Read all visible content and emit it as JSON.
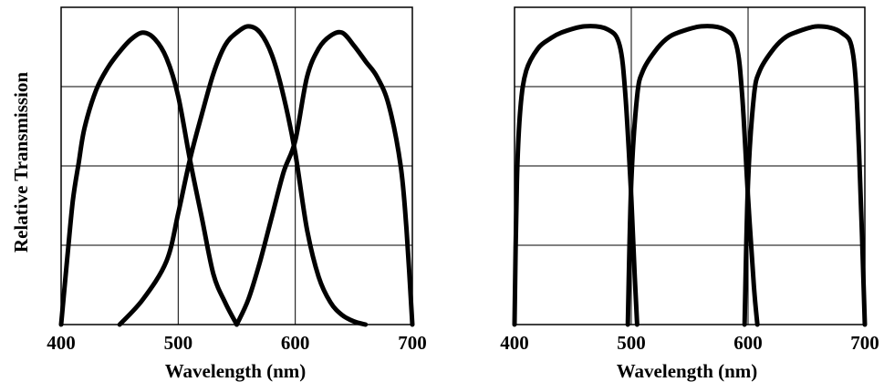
{
  "colors": {
    "background": "#ffffff",
    "ink": "#000000"
  },
  "chart_data": [
    {
      "type": "line",
      "title": "",
      "xlabel": "Wavelength (nm)",
      "ylabel": "Relative Transmission",
      "xlim": [
        400,
        700
      ],
      "ylim": [
        0,
        1
      ],
      "x_ticks": [
        "400",
        "500",
        "600",
        "700"
      ],
      "grid": true,
      "y_tick_labels_shown": false,
      "series": [
        {
          "x": [
            400,
            405,
            410,
            415,
            420,
            430,
            440,
            450,
            460,
            470,
            480,
            490,
            500,
            510,
            520,
            530,
            540,
            550
          ],
          "y": [
            0,
            0.2,
            0.39,
            0.51,
            0.62,
            0.74,
            0.81,
            0.86,
            0.9,
            0.92,
            0.9,
            0.84,
            0.72,
            0.52,
            0.34,
            0.16,
            0.07,
            0
          ]
        },
        {
          "x": [
            450,
            470,
            490,
            500,
            510,
            520,
            530,
            540,
            550,
            560,
            570,
            580,
            590,
            600,
            610,
            620,
            630,
            640,
            650,
            660
          ],
          "y": [
            0,
            0.08,
            0.2,
            0.35,
            0.52,
            0.66,
            0.79,
            0.88,
            0.92,
            0.94,
            0.92,
            0.85,
            0.72,
            0.54,
            0.3,
            0.15,
            0.07,
            0.03,
            0.01,
            0
          ]
        },
        {
          "x": [
            550,
            560,
            570,
            580,
            590,
            600,
            610,
            620,
            630,
            640,
            650,
            660,
            670,
            680,
            690,
            695,
            700
          ],
          "y": [
            0,
            0.08,
            0.2,
            0.34,
            0.48,
            0.58,
            0.78,
            0.87,
            0.91,
            0.92,
            0.88,
            0.83,
            0.78,
            0.69,
            0.5,
            0.3,
            0
          ]
        }
      ]
    },
    {
      "type": "line",
      "title": "",
      "xlabel": "Wavelength (nm)",
      "ylabel": "",
      "xlim": [
        400,
        700
      ],
      "ylim": [
        0,
        1
      ],
      "x_ticks": [
        "400",
        "500",
        "600",
        "700"
      ],
      "grid": true,
      "y_tick_labels_shown": false,
      "series": [
        {
          "x": [
            400,
            402,
            405,
            410,
            420,
            430,
            440,
            460,
            480,
            490,
            495,
            500,
            503,
            505
          ],
          "y": [
            0,
            0.45,
            0.68,
            0.8,
            0.87,
            0.9,
            0.92,
            0.94,
            0.93,
            0.88,
            0.72,
            0.4,
            0.15,
            0
          ]
        },
        {
          "x": [
            497,
            500,
            505,
            510,
            520,
            530,
            540,
            560,
            580,
            590,
            595,
            600,
            605,
            608
          ],
          "y": [
            0,
            0.45,
            0.72,
            0.8,
            0.86,
            0.9,
            0.92,
            0.94,
            0.93,
            0.88,
            0.72,
            0.4,
            0.12,
            0
          ]
        },
        {
          "x": [
            597,
            600,
            605,
            610,
            620,
            630,
            640,
            660,
            680,
            690,
            695,
            700
          ],
          "y": [
            0,
            0.45,
            0.72,
            0.8,
            0.86,
            0.9,
            0.92,
            0.94,
            0.92,
            0.85,
            0.55,
            0
          ]
        }
      ]
    }
  ]
}
